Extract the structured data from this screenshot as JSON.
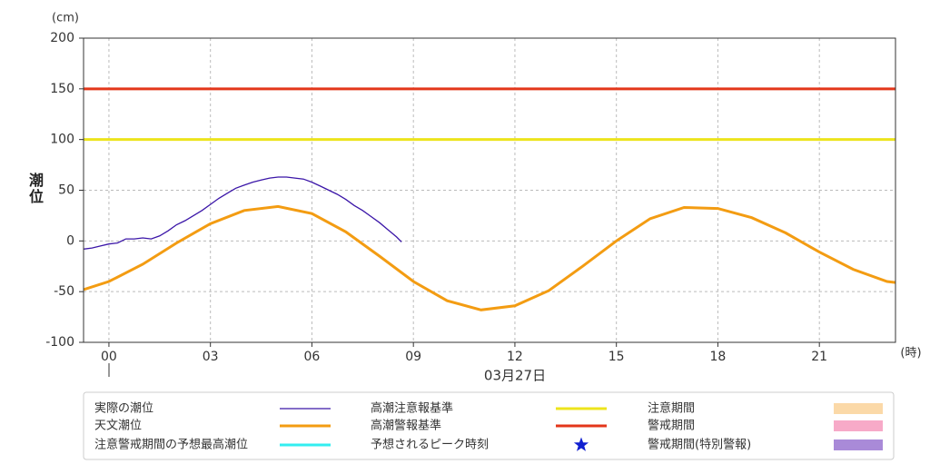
{
  "chart_data": {
    "type": "line",
    "y_unit": "(cm)",
    "y_label": "潮位",
    "x_unit": "(時)",
    "x_label": "03月27日",
    "xlim": [
      -0.75,
      23.25
    ],
    "ylim": [
      -100,
      200
    ],
    "xticks": [
      {
        "value": 0,
        "label": "00"
      },
      {
        "value": 3,
        "label": "03"
      },
      {
        "value": 6,
        "label": "06"
      },
      {
        "value": 9,
        "label": "09"
      },
      12,
      15,
      18,
      21
    ],
    "yticks": [
      -100,
      -50,
      0,
      50,
      100,
      150,
      200
    ],
    "grid": true,
    "series": [
      {
        "name": "実際の潮位",
        "color": "#3b16a8",
        "x": [
          -0.75,
          -0.5,
          -0.25,
          0,
          0.25,
          0.5,
          0.75,
          1,
          1.25,
          1.5,
          1.75,
          2,
          2.25,
          2.5,
          2.75,
          3,
          3.25,
          3.5,
          3.75,
          4,
          4.25,
          4.5,
          4.75,
          5,
          5.25,
          5.5,
          5.75,
          6,
          6.25,
          6.5,
          6.75,
          7,
          7.25,
          7.5,
          7.75,
          8,
          8.25,
          8.5,
          8.65
        ],
        "values": [
          -8,
          -7,
          -5,
          -3,
          -2,
          2,
          2,
          3,
          2,
          5,
          10,
          16,
          20,
          25,
          30,
          36,
          42,
          47,
          52,
          55,
          58,
          60,
          62,
          63,
          63,
          62,
          61,
          58,
          54,
          50,
          46,
          41,
          35,
          30,
          24,
          18,
          11,
          4,
          -1
        ]
      },
      {
        "name": "天文潮位",
        "color": "#f39c12",
        "x": [
          -0.75,
          0,
          1,
          2,
          3,
          4,
          5,
          6,
          7,
          8,
          9,
          10,
          11,
          12,
          13,
          14,
          15,
          16,
          17,
          18,
          19,
          20,
          21,
          22,
          23,
          23.25
        ],
        "values": [
          -48,
          -40,
          -23,
          -2,
          17,
          30,
          34,
          27,
          9,
          -15,
          -40,
          -59,
          -68,
          -64,
          -49,
          -25,
          0,
          22,
          33,
          32,
          23,
          8,
          -11,
          -28,
          -40,
          -41
        ]
      }
    ],
    "reference_lines": [
      {
        "name": "高潮注意報基準",
        "color": "#ede41c",
        "value": 100
      },
      {
        "name": "高潮警報基準",
        "color": "#e3361a",
        "value": 150
      }
    ],
    "other_legend_items": [
      {
        "name": "注意警戒期間の予想最高潮位",
        "color": "#33eef0",
        "symbol": "line"
      },
      {
        "name": "予想されるピーク時刻",
        "color": "#1020d0",
        "symbol": "star"
      },
      {
        "name": "注意期間",
        "color": "#fbd9a8",
        "symbol": "box"
      },
      {
        "name": "警戒期間",
        "color": "#f7aac8",
        "symbol": "box"
      },
      {
        "name": "警戒期間(特別警報)",
        "color": "#a98ad8",
        "symbol": "box"
      }
    ]
  }
}
